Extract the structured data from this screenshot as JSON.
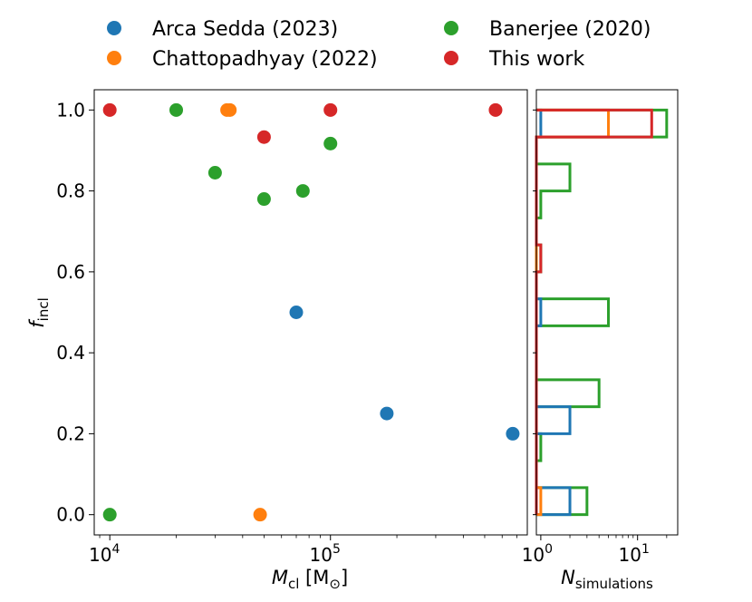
{
  "chart_data": [
    {
      "type": "scatter",
      "xscale": "log",
      "xlim": [
        8500,
        780000
      ],
      "ylim": [
        -0.05,
        1.05
      ],
      "xlabel": "M_cl [M_⊙]",
      "ylabel": "f_incl",
      "xtick_values": [
        10000,
        100000
      ],
      "xtick_labels": [
        {
          "base": "10",
          "exp": "4"
        },
        {
          "base": "10",
          "exp": "5"
        }
      ],
      "ytick_values": [
        0.0,
        0.2,
        0.4,
        0.6,
        0.8,
        1.0
      ],
      "ytick_labels": [
        "0.0",
        "0.2",
        "0.4",
        "0.6",
        "0.8",
        "1.0"
      ],
      "legend_position": "top",
      "series": [
        {
          "name": "Arca Sedda (2023)",
          "color": "#1f77b4",
          "points": [
            [
              70000,
              0.5
            ],
            [
              180000,
              0.25
            ],
            [
              670000,
              0.2
            ]
          ]
        },
        {
          "name": "Chattopadhyay (2022)",
          "color": "#ff7f0e",
          "points": [
            [
              34000,
              1.0
            ],
            [
              35000,
              1.0
            ],
            [
              48000,
              0.0
            ]
          ]
        },
        {
          "name": "Banerjee (2020)",
          "color": "#2ca02c",
          "points": [
            [
              10000,
              0.0
            ],
            [
              20000,
              1.0
            ],
            [
              30000,
              0.845
            ],
            [
              50000,
              0.78
            ],
            [
              75000,
              0.8
            ],
            [
              100000,
              0.917
            ]
          ]
        },
        {
          "name": "This work",
          "color": "#d62728",
          "points": [
            [
              10000,
              1.0
            ],
            [
              50000,
              0.933
            ],
            [
              100000,
              1.0
            ],
            [
              560000,
              1.0
            ]
          ]
        }
      ]
    },
    {
      "type": "histogram",
      "orientation": "horizontal",
      "histtype": "step",
      "xscale": "log",
      "xlim": [
        0.9,
        26
      ],
      "ylim": [
        -0.05,
        1.05
      ],
      "xlabel": "N_simulations",
      "xtick_values": [
        1,
        10
      ],
      "xtick_labels": [
        {
          "base": "10",
          "exp": "0"
        },
        {
          "base": "10",
          "exp": "1"
        }
      ],
      "bin_edges": [
        0.0,
        0.0667,
        0.1333,
        0.2,
        0.2667,
        0.3333,
        0.4,
        0.4667,
        0.5333,
        0.6,
        0.6667,
        0.7333,
        0.8,
        0.8667,
        0.9333,
        1.0
      ],
      "series": [
        {
          "name": "Banerjee (2020)",
          "color": "#2ca02c",
          "counts": [
            3,
            0,
            1,
            0,
            4,
            0,
            0,
            5,
            0,
            1,
            0,
            1,
            2,
            0,
            20
          ]
        },
        {
          "name": "Arca Sedda (2023)",
          "color": "#1f77b4",
          "counts": [
            2,
            0,
            0,
            2,
            0,
            0,
            0,
            1,
            0,
            0,
            0,
            0,
            0,
            0,
            1
          ]
        },
        {
          "name": "Chattopadhyay (2022)",
          "color": "#ff7f0e",
          "counts": [
            1,
            0,
            0,
            0,
            0,
            0,
            0,
            0,
            0,
            0,
            0,
            0,
            0,
            0,
            5
          ]
        },
        {
          "name": "This work",
          "color": "#d62728",
          "counts": [
            0,
            0,
            0,
            0,
            0,
            0,
            0,
            0,
            0,
            1,
            0,
            0,
            0,
            0,
            14
          ]
        }
      ]
    }
  ]
}
